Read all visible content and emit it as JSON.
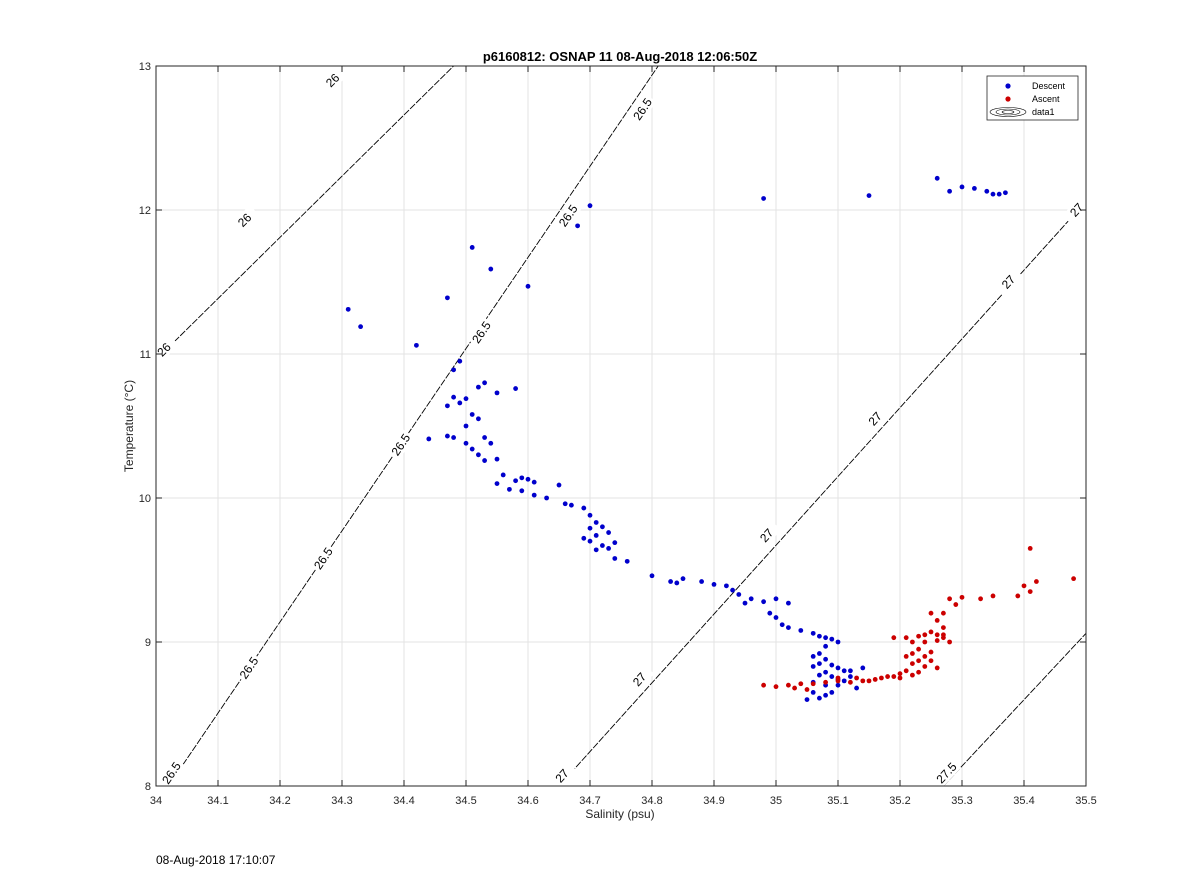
{
  "chart_data": {
    "type": "scatter",
    "title": "p6160812: OSNAP 11 08-Aug-2018 12:06:50Z",
    "xlabel": "Salinity (psu)",
    "ylabel": "Temperature (°C)",
    "xlim": [
      34,
      35.5
    ],
    "ylim": [
      8,
      13
    ],
    "xticks": [
      34,
      34.1,
      34.2,
      34.3,
      34.4,
      34.5,
      34.6,
      34.7,
      34.8,
      34.9,
      35,
      35.1,
      35.2,
      35.3,
      35.4,
      35.5
    ],
    "xtick_labels": [
      "34",
      "34.1",
      "34.2",
      "34.3",
      "34.4",
      "34.5",
      "34.6",
      "34.7",
      "34.8",
      "34.9",
      "35",
      "35.1",
      "35.2",
      "35.3",
      "35.4",
      "35.5"
    ],
    "yticks": [
      8,
      9,
      10,
      11,
      12,
      13
    ],
    "ytick_labels": [
      "8",
      "9",
      "10",
      "11",
      "12",
      "13"
    ],
    "grid": true,
    "legend_position": "top-right",
    "legend": [
      {
        "label": "Descent",
        "marker": "dot",
        "color": "#0000cc"
      },
      {
        "label": "Ascent",
        "marker": "dot",
        "color": "#cc0000"
      },
      {
        "label": "data1",
        "marker": "contour",
        "color": "#000000"
      }
    ],
    "contours": [
      {
        "label": "26",
        "points": [
          [
            34.0,
            10.96
          ],
          [
            34.48,
            13.0
          ]
        ],
        "label_positions": [
          [
            34.013,
            11.03
          ],
          [
            34.143,
            11.93
          ],
          [
            34.285,
            12.9
          ]
        ]
      },
      {
        "label": "26.5",
        "points": [
          [
            34.02,
            8.0
          ],
          [
            34.81,
            13.0
          ]
        ],
        "label_positions": [
          [
            34.025,
            8.09
          ],
          [
            34.15,
            8.82
          ],
          [
            34.27,
            9.58
          ],
          [
            34.395,
            10.37
          ],
          [
            34.525,
            11.15
          ],
          [
            34.665,
            11.96
          ],
          [
            34.785,
            12.7
          ]
        ]
      },
      {
        "label": "27",
        "points": [
          [
            34.65,
            8.0
          ],
          [
            35.5,
            12.06
          ]
        ],
        "label_positions": [
          [
            34.655,
            8.07
          ],
          [
            34.78,
            8.74
          ],
          [
            34.985,
            9.74
          ],
          [
            35.16,
            10.55
          ],
          [
            35.375,
            11.5
          ],
          [
            35.485,
            12.0
          ]
        ]
      },
      {
        "label": "27.5",
        "points": [
          [
            35.27,
            8.0
          ],
          [
            35.5,
            9.06
          ]
        ],
        "label_positions": [
          [
            35.275,
            8.09
          ]
        ]
      }
    ],
    "series": [
      {
        "name": "Descent",
        "color": "#0000cc",
        "points": [
          [
            35.36,
            12.11
          ],
          [
            35.34,
            12.13
          ],
          [
            35.32,
            12.15
          ],
          [
            35.3,
            12.16
          ],
          [
            35.28,
            12.13
          ],
          [
            35.26,
            12.22
          ],
          [
            35.37,
            12.12
          ],
          [
            35.35,
            12.11
          ],
          [
            35.15,
            12.1
          ],
          [
            34.98,
            12.08
          ],
          [
            34.7,
            12.03
          ],
          [
            34.68,
            11.89
          ],
          [
            34.51,
            11.74
          ],
          [
            34.54,
            11.59
          ],
          [
            34.6,
            11.47
          ],
          [
            34.47,
            11.39
          ],
          [
            34.31,
            11.31
          ],
          [
            34.33,
            11.19
          ],
          [
            34.42,
            11.06
          ],
          [
            34.49,
            10.95
          ],
          [
            34.48,
            10.89
          ],
          [
            34.53,
            10.8
          ],
          [
            34.52,
            10.77
          ],
          [
            34.58,
            10.76
          ],
          [
            34.55,
            10.73
          ],
          [
            34.5,
            10.69
          ],
          [
            34.48,
            10.7
          ],
          [
            34.47,
            10.64
          ],
          [
            34.49,
            10.66
          ],
          [
            34.51,
            10.58
          ],
          [
            34.52,
            10.55
          ],
          [
            34.5,
            10.5
          ],
          [
            34.47,
            10.43
          ],
          [
            34.44,
            10.41
          ],
          [
            34.48,
            10.42
          ],
          [
            34.53,
            10.42
          ],
          [
            34.54,
            10.38
          ],
          [
            34.5,
            10.38
          ],
          [
            34.51,
            10.34
          ],
          [
            34.52,
            10.3
          ],
          [
            34.53,
            10.26
          ],
          [
            34.55,
            10.27
          ],
          [
            34.56,
            10.16
          ],
          [
            34.58,
            10.12
          ],
          [
            34.59,
            10.14
          ],
          [
            34.6,
            10.13
          ],
          [
            34.61,
            10.11
          ],
          [
            34.55,
            10.1
          ],
          [
            34.57,
            10.06
          ],
          [
            34.59,
            10.05
          ],
          [
            34.61,
            10.02
          ],
          [
            34.63,
            10.0
          ],
          [
            34.65,
            10.09
          ],
          [
            34.66,
            9.96
          ],
          [
            34.67,
            9.95
          ],
          [
            34.69,
            9.93
          ],
          [
            34.7,
            9.88
          ],
          [
            34.71,
            9.83
          ],
          [
            34.72,
            9.8
          ],
          [
            34.7,
            9.79
          ],
          [
            34.73,
            9.76
          ],
          [
            34.71,
            9.74
          ],
          [
            34.69,
            9.72
          ],
          [
            34.7,
            9.7
          ],
          [
            34.72,
            9.67
          ],
          [
            34.73,
            9.65
          ],
          [
            34.74,
            9.69
          ],
          [
            34.71,
            9.64
          ],
          [
            34.74,
            9.58
          ],
          [
            34.76,
            9.56
          ],
          [
            34.8,
            9.46
          ],
          [
            34.83,
            9.42
          ],
          [
            34.85,
            9.44
          ],
          [
            34.84,
            9.41
          ],
          [
            34.88,
            9.42
          ],
          [
            34.9,
            9.4
          ],
          [
            34.92,
            9.39
          ],
          [
            34.93,
            9.36
          ],
          [
            34.94,
            9.33
          ],
          [
            34.96,
            9.3
          ],
          [
            34.95,
            9.27
          ],
          [
            34.98,
            9.28
          ],
          [
            35.0,
            9.3
          ],
          [
            35.02,
            9.27
          ],
          [
            34.99,
            9.2
          ],
          [
            35.0,
            9.17
          ],
          [
            35.01,
            9.12
          ],
          [
            35.02,
            9.1
          ],
          [
            35.04,
            9.08
          ],
          [
            35.06,
            9.06
          ],
          [
            35.07,
            9.04
          ],
          [
            35.08,
            9.03
          ],
          [
            35.09,
            9.02
          ],
          [
            35.1,
            9.0
          ],
          [
            35.08,
            8.97
          ],
          [
            35.07,
            8.92
          ],
          [
            35.06,
            8.9
          ],
          [
            35.08,
            8.88
          ],
          [
            35.07,
            8.85
          ],
          [
            35.09,
            8.84
          ],
          [
            35.06,
            8.83
          ],
          [
            35.1,
            8.82
          ],
          [
            35.11,
            8.8
          ],
          [
            35.08,
            8.79
          ],
          [
            35.12,
            8.8
          ],
          [
            35.07,
            8.77
          ],
          [
            35.09,
            8.76
          ],
          [
            35.1,
            8.74
          ],
          [
            35.06,
            8.72
          ],
          [
            35.08,
            8.7
          ],
          [
            35.13,
            8.68
          ],
          [
            35.06,
            8.65
          ],
          [
            35.08,
            8.63
          ],
          [
            35.07,
            8.61
          ],
          [
            35.05,
            8.6
          ],
          [
            35.09,
            8.65
          ],
          [
            35.1,
            8.7
          ],
          [
            35.11,
            8.73
          ],
          [
            35.14,
            8.82
          ],
          [
            35.12,
            8.76
          ]
        ]
      },
      {
        "name": "Ascent",
        "color": "#cc0000",
        "points": [
          [
            35.41,
            9.65
          ],
          [
            35.48,
            9.44
          ],
          [
            35.42,
            9.42
          ],
          [
            35.4,
            9.39
          ],
          [
            35.41,
            9.35
          ],
          [
            35.39,
            9.32
          ],
          [
            35.35,
            9.32
          ],
          [
            35.33,
            9.3
          ],
          [
            35.3,
            9.31
          ],
          [
            35.28,
            9.3
          ],
          [
            35.29,
            9.26
          ],
          [
            35.27,
            9.2
          ],
          [
            35.25,
            9.2
          ],
          [
            35.26,
            9.15
          ],
          [
            35.27,
            9.1
          ],
          [
            35.25,
            9.07
          ],
          [
            35.24,
            9.05
          ],
          [
            35.26,
            9.05
          ],
          [
            35.23,
            9.04
          ],
          [
            35.21,
            9.03
          ],
          [
            35.19,
            9.03
          ],
          [
            35.22,
            9.0
          ],
          [
            35.24,
            9.0
          ],
          [
            35.26,
            9.01
          ],
          [
            35.27,
            9.03
          ],
          [
            35.28,
            9.0
          ],
          [
            35.23,
            8.95
          ],
          [
            35.22,
            8.92
          ],
          [
            35.21,
            8.9
          ],
          [
            35.24,
            8.9
          ],
          [
            35.25,
            8.87
          ],
          [
            35.22,
            8.85
          ],
          [
            35.24,
            8.83
          ],
          [
            35.26,
            8.82
          ],
          [
            35.21,
            8.8
          ],
          [
            35.23,
            8.79
          ],
          [
            35.2,
            8.78
          ],
          [
            35.22,
            8.77
          ],
          [
            35.19,
            8.76
          ],
          [
            35.17,
            8.75
          ],
          [
            35.16,
            8.74
          ],
          [
            35.15,
            8.73
          ],
          [
            35.14,
            8.73
          ],
          [
            35.12,
            8.72
          ],
          [
            35.1,
            8.73
          ],
          [
            35.08,
            8.72
          ],
          [
            35.06,
            8.71
          ],
          [
            35.04,
            8.71
          ],
          [
            35.02,
            8.7
          ],
          [
            35.0,
            8.69
          ],
          [
            34.98,
            8.7
          ],
          [
            35.03,
            8.68
          ],
          [
            35.05,
            8.67
          ],
          [
            35.1,
            8.75
          ],
          [
            35.13,
            8.75
          ],
          [
            35.18,
            8.76
          ],
          [
            35.2,
            8.75
          ],
          [
            35.27,
            9.05
          ],
          [
            35.23,
            8.87
          ],
          [
            35.25,
            8.93
          ]
        ]
      }
    ],
    "footer_timestamp": "08-Aug-2018 17:10:07"
  }
}
